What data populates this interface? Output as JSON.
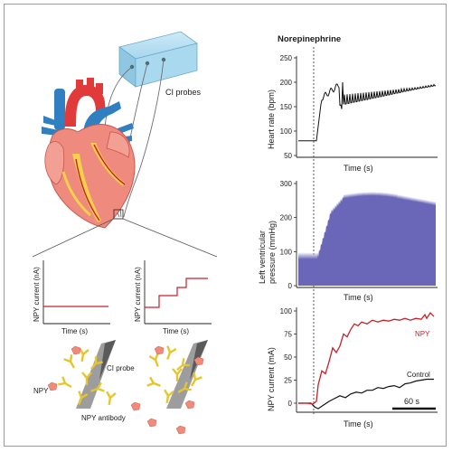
{
  "left": {
    "box_label": "CI probes",
    "inset_a": {
      "ylabel": "NPY current (nA)",
      "xlabel": "Time (s)"
    },
    "inset_b": {
      "ylabel": "NPY current (nA)",
      "xlabel": "Time (s)"
    },
    "bottom": {
      "npy_label": "NPY",
      "probe_label": "CI probe",
      "antibody_label": "NPY antibody"
    }
  },
  "right": {
    "title": "Norepinephrine",
    "panel1": {
      "ylabel": "Heart rate (bpm)",
      "xlabel": "Time (s)",
      "ticks": [
        "250",
        "200",
        "150",
        "100",
        "50"
      ]
    },
    "panel2": {
      "ylabel_1": "Left ventricular",
      "ylabel_2": "pressure (mmHg)",
      "xlabel": "Time (s)",
      "ticks": [
        "300",
        "200",
        "100",
        "0"
      ]
    },
    "panel3": {
      "ylabel": "NPY current (mA)",
      "xlabel": "Time (s)",
      "ticks": [
        "100",
        "75",
        "50",
        "25",
        "0"
      ],
      "series_npy": "NPY",
      "series_control": "Control",
      "scalebar": "60 s"
    }
  },
  "colors": {
    "npy_trace": "#c8202a",
    "pressure_fill": "#6b67b8",
    "box_fill": "#a9d9ef",
    "antibody": "#e6c62a",
    "npy_particle": "#f08a7a"
  }
}
